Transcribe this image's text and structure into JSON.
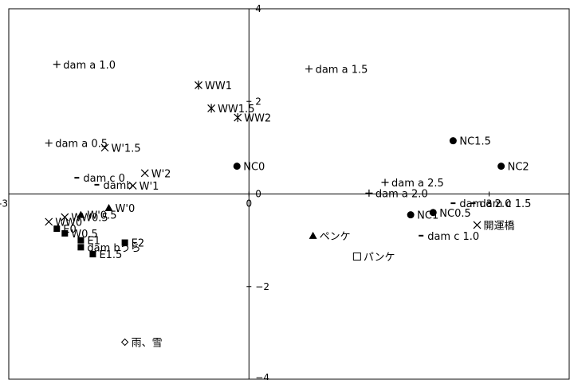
{
  "chart_data": {
    "type": "scatter",
    "title": "",
    "xlabel": "",
    "ylabel": "",
    "xlim": [
      -3,
      4
    ],
    "ylim": [
      -4,
      4
    ],
    "grid": false,
    "legend": "none",
    "x_ticks": [
      {
        "value": -3,
        "label": "-3"
      },
      {
        "value": 0,
        "label": "0"
      },
      {
        "value": 3,
        "label": "3"
      }
    ],
    "y_ticks": [
      {
        "value": 4,
        "label": "4"
      },
      {
        "value": 2,
        "label": "2"
      },
      {
        "value": 0,
        "label": "0"
      },
      {
        "value": -2,
        "label": "−2"
      },
      {
        "value": -4,
        "label": "−4"
      }
    ],
    "points": [
      {
        "x": -2.4,
        "y": 2.8,
        "marker": "plus",
        "label": "dam a 1.0"
      },
      {
        "x": 0.75,
        "y": 2.7,
        "marker": "plus",
        "label": "dam a 1.5"
      },
      {
        "x": -2.5,
        "y": 1.1,
        "marker": "plus",
        "label": "dam a 0.5"
      },
      {
        "x": 1.7,
        "y": 0.25,
        "marker": "plus",
        "label": "dam a 2.5"
      },
      {
        "x": 1.5,
        "y": 0.02,
        "marker": "plus",
        "label": "dam a 2.0"
      },
      {
        "x": -0.63,
        "y": 2.35,
        "marker": "asterisk",
        "label": "WW1"
      },
      {
        "x": -0.47,
        "y": 1.85,
        "marker": "asterisk",
        "label": "WW1.5"
      },
      {
        "x": -0.14,
        "y": 1.65,
        "marker": "asterisk",
        "label": "WW2"
      },
      {
        "x": -1.8,
        "y": 1.0,
        "marker": "cross",
        "label": "W'1.5"
      },
      {
        "x": -1.3,
        "y": 0.45,
        "marker": "cross",
        "label": "W'2"
      },
      {
        "x": -1.45,
        "y": 0.18,
        "marker": "cross",
        "label": "W'1"
      },
      {
        "x": 2.85,
        "y": -0.67,
        "marker": "cross",
        "label": "開運橋"
      },
      {
        "x": 2.55,
        "y": 1.15,
        "marker": "circle",
        "label": "NC1.5"
      },
      {
        "x": 3.15,
        "y": 0.6,
        "marker": "circle",
        "label": "NC2"
      },
      {
        "x": -0.15,
        "y": 0.6,
        "marker": "circle",
        "label": "NC0"
      },
      {
        "x": 2.3,
        "y": -0.4,
        "marker": "circle",
        "label": "NC0.5"
      },
      {
        "x": 2.02,
        "y": -0.45,
        "marker": "circle",
        "label": "NC1"
      },
      {
        "x": -2.1,
        "y": -1.0,
        "marker": "square",
        "label": "E1"
      },
      {
        "x": -1.55,
        "y": -1.05,
        "marker": "square",
        "label": "E2"
      },
      {
        "x": -1.95,
        "y": -1.3,
        "marker": "square",
        "label": "E1.5"
      },
      {
        "x": 1.35,
        "y": -1.35,
        "marker": "open-square",
        "label": "パンケ"
      },
      {
        "x": 0.8,
        "y": -0.9,
        "marker": "triangle",
        "label": "ペンケ"
      },
      {
        "x": -1.55,
        "y": -3.2,
        "marker": "diamond",
        "label": "雨、雪"
      },
      {
        "x": 2.55,
        "y": -0.2,
        "marker": "dash",
        "label": "dam c 2.0"
      },
      {
        "x": 2.8,
        "y": -0.2,
        "marker": "dash",
        "label": "dam c 1.5"
      },
      {
        "x": 2.15,
        "y": -0.9,
        "marker": "dash",
        "label": "dam c 1.0"
      },
      {
        "x": -2.15,
        "y": 0.35,
        "marker": "dash",
        "label": "dam c 0"
      },
      {
        "x": -1.9,
        "y": 0.2,
        "marker": "dash",
        "label": "damb"
      },
      {
        "x": -2.1,
        "y": -0.45,
        "marker": "triangle",
        "label": "W'0.5"
      },
      {
        "x": -2.3,
        "y": -0.5,
        "marker": "cross",
        "label": "WW0.5"
      },
      {
        "x": -2.5,
        "y": -0.6,
        "marker": "cross",
        "label": "WW0"
      },
      {
        "x": -2.4,
        "y": -0.75,
        "marker": "square",
        "label": "E0"
      },
      {
        "x": -2.3,
        "y": -0.85,
        "marker": "square",
        "label": "W0.5"
      },
      {
        "x": -2.1,
        "y": -1.15,
        "marker": "square",
        "label": "dam bうら"
      },
      {
        "x": -1.75,
        "y": -0.3,
        "marker": "triangle",
        "label": "W'0"
      }
    ]
  }
}
